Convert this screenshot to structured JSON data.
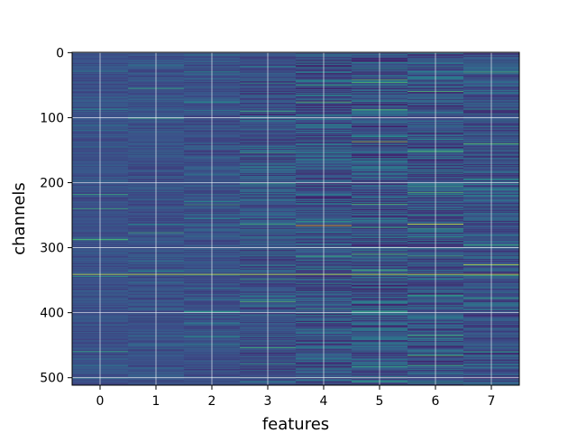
{
  "chart_data": {
    "type": "heatmap",
    "title": "",
    "xlabel": "features",
    "ylabel": "channels",
    "x_categories": [
      0,
      1,
      2,
      3,
      4,
      5,
      6,
      7
    ],
    "x_tick_labels": [
      "0",
      "1",
      "2",
      "3",
      "4",
      "5",
      "6",
      "7"
    ],
    "y_tick_values": [
      0,
      100,
      200,
      300,
      400,
      500
    ],
    "y_tick_labels": [
      "0",
      "100",
      "200",
      "300",
      "400",
      "500"
    ],
    "xlim": [
      -0.5,
      7.5
    ],
    "ylim": [
      511.5,
      -0.5
    ],
    "y_axis_inverted": true,
    "rows": 512,
    "columns": 8,
    "colormap": "viridis",
    "colormap_stops": [
      "#440154",
      "#3b528b",
      "#21918c",
      "#5ec962",
      "#fde725"
    ],
    "grid": true,
    "grid_color": "#ffffff",
    "column_contrast": [
      0.06,
      0.07,
      0.08,
      0.12,
      0.16,
      0.17,
      0.16,
      0.13
    ],
    "highlighted_cells": [
      {
        "row": 341,
        "columns": [
          0,
          1,
          2,
          3,
          4,
          5,
          6,
          7
        ],
        "level": 0.93
      },
      {
        "row": 266,
        "columns": [
          4
        ],
        "level": 0.97
      },
      {
        "row": 264,
        "columns": [
          6
        ],
        "level": 0.95
      },
      {
        "row": 326,
        "columns": [
          7
        ],
        "level": 0.92
      },
      {
        "row": 137,
        "columns": [
          5
        ],
        "level": 0.85
      },
      {
        "row": 88,
        "columns": [
          5
        ],
        "level": 0.72
      },
      {
        "row": 233,
        "columns": [
          5
        ],
        "level": 0.7
      },
      {
        "row": 215,
        "columns": [
          6
        ],
        "level": 0.7
      },
      {
        "row": 140,
        "columns": [
          7
        ],
        "level": 0.75
      },
      {
        "row": 76,
        "columns": [
          4
        ],
        "level": 0.72
      },
      {
        "row": 218,
        "columns": [
          0
        ],
        "level": 0.6
      },
      {
        "row": 466,
        "columns": [
          6
        ],
        "level": 0.7
      },
      {
        "row": 30,
        "columns": [
          7
        ],
        "level": 0.65
      }
    ]
  }
}
